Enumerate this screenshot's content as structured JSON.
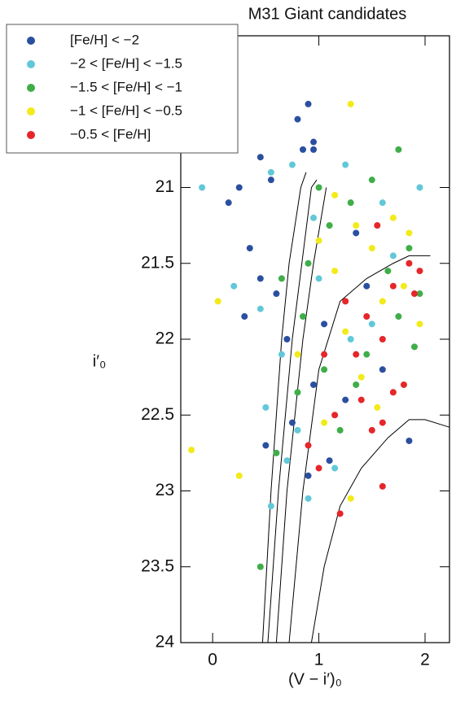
{
  "chart_data": {
    "type": "scatter",
    "title": "M31 Giant candidates",
    "x_label": "(V − i′)₀",
    "y_label": "i′₀",
    "xlim": [
      -0.3,
      2.23
    ],
    "ylim": [
      24,
      20
    ],
    "xticks": [
      0,
      1,
      2
    ],
    "yticks": [
      21,
      21.5,
      22,
      22.5,
      23,
      23.5,
      24
    ],
    "series": [
      {
        "name": "[Fe/H] < −2",
        "color": "#2b4fa0",
        "x": [
          0.9,
          0.8,
          0.95,
          0.85,
          0.95,
          0.45,
          0.25,
          0.15,
          0.35,
          0.45,
          0.6,
          0.3,
          0.7,
          0.95,
          0.75,
          0.5,
          0.9,
          1.1,
          1.35,
          1.45,
          1.6,
          1.85,
          0.55,
          1.05,
          1.25
        ],
        "values": [
          20.45,
          20.55,
          20.7,
          20.75,
          20.75,
          20.8,
          21.0,
          21.1,
          21.4,
          21.6,
          21.7,
          21.85,
          22.0,
          22.3,
          22.55,
          22.7,
          22.9,
          22.8,
          21.3,
          21.65,
          22.2,
          22.67,
          20.95,
          21.9,
          22.4
        ]
      },
      {
        "name": "−2 < [Fe/H] < −1.5",
        "color": "#62c8d8",
        "x": [
          -0.1,
          0.75,
          0.55,
          0.95,
          0.2,
          0.45,
          1.95,
          1.6,
          0.65,
          0.5,
          0.8,
          0.55,
          0.9,
          1.15,
          1.3,
          1.5,
          1.7,
          1.0,
          1.25,
          0.7
        ],
        "values": [
          21.0,
          20.85,
          20.9,
          21.2,
          21.65,
          21.8,
          21.0,
          21.1,
          22.1,
          22.45,
          22.6,
          23.1,
          23.05,
          22.85,
          22.0,
          21.9,
          21.45,
          21.6,
          20.85,
          22.8
        ]
      },
      {
        "name": "−1.5 < [Fe/H] < −1",
        "color": "#3fae49",
        "x": [
          0.45,
          0.6,
          0.8,
          0.9,
          1.1,
          1.3,
          1.5,
          1.75,
          1.85,
          1.95,
          1.75,
          1.45,
          1.2,
          1.05,
          0.85,
          1.0,
          1.65,
          1.9,
          0.65,
          1.35
        ],
        "values": [
          23.5,
          22.75,
          22.35,
          21.5,
          21.25,
          21.1,
          20.95,
          20.75,
          21.4,
          21.7,
          21.85,
          22.1,
          22.6,
          22.2,
          21.85,
          21.0,
          21.55,
          22.05,
          21.6,
          22.3
        ]
      },
      {
        "name": "−1 < [Fe/H] < −0.5",
        "color": "#f2ea1a",
        "x": [
          1.3,
          -0.2,
          0.05,
          0.25,
          1.0,
          1.15,
          1.35,
          1.5,
          1.7,
          1.85,
          1.6,
          1.25,
          1.4,
          1.05,
          1.3,
          0.8,
          1.8,
          1.55,
          1.15,
          1.95
        ],
        "values": [
          20.45,
          22.73,
          21.75,
          22.9,
          21.35,
          21.55,
          21.25,
          21.4,
          21.2,
          21.3,
          21.75,
          21.95,
          22.25,
          22.55,
          23.05,
          22.1,
          21.65,
          22.45,
          21.05,
          21.9
        ]
      },
      {
        "name": "−0.5 < [Fe/H]",
        "color": "#e5262a",
        "x": [
          1.55,
          1.7,
          1.9,
          1.45,
          1.6,
          1.8,
          1.35,
          1.15,
          1.4,
          1.6,
          1.05,
          0.9,
          1.2,
          1.6,
          1.85,
          1.25,
          1.5,
          1.0,
          1.7,
          1.95
        ],
        "values": [
          21.25,
          21.65,
          21.7,
          21.85,
          22.0,
          22.3,
          22.1,
          22.5,
          22.4,
          22.55,
          22.1,
          22.7,
          23.15,
          22.97,
          21.5,
          21.75,
          22.6,
          22.85,
          22.35,
          21.55
        ]
      }
    ],
    "lines": [
      {
        "x": [
          0.47,
          0.55,
          0.65,
          0.72,
          0.83,
          0.88
        ],
        "values": [
          24,
          23,
          22,
          21.5,
          21.0,
          20.9
        ]
      },
      {
        "x": [
          0.52,
          0.62,
          0.75,
          0.84,
          0.93,
          0.98
        ],
        "values": [
          24,
          23,
          22,
          21.5,
          21.0,
          20.95
        ]
      },
      {
        "x": [
          0.6,
          0.7,
          0.85,
          0.95,
          1.07
        ],
        "values": [
          24,
          23,
          22,
          21.5,
          21.0
        ]
      },
      {
        "x": [
          0.72,
          0.85,
          1.0,
          1.2,
          1.45,
          1.7,
          1.85,
          2.05
        ],
        "values": [
          24,
          23,
          22.2,
          21.75,
          21.6,
          21.5,
          21.45,
          21.45
        ]
      },
      {
        "x": [
          0.93,
          1.05,
          1.2,
          1.4,
          1.65,
          1.85,
          2.0,
          2.23
        ],
        "values": [
          24,
          23.5,
          23.1,
          22.85,
          22.65,
          22.53,
          22.53,
          22.58
        ]
      }
    ]
  }
}
